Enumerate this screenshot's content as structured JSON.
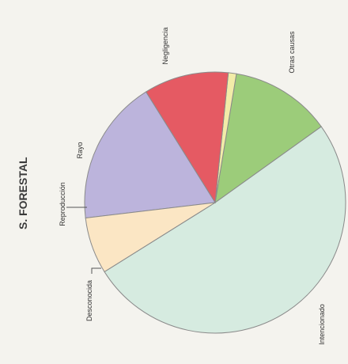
{
  "chart_data": {
    "type": "pie",
    "title": "S. FORESTAL",
    "legend": "none",
    "slices": [
      {
        "label": "Intencionado",
        "value": 51.0,
        "color": "#d6ebe0"
      },
      {
        "label": "Desconocida",
        "value": 12.5,
        "color": "#9ccc7a"
      },
      {
        "label": "Reproducción",
        "value": 1.0,
        "color": "#f2eca8"
      },
      {
        "label": "Rayo",
        "value": 10.5,
        "color": "#e55a63"
      },
      {
        "label": "Negligencia",
        "value": 18.0,
        "color": "#bcb4dc"
      },
      {
        "label": "Otras causas",
        "value": 7.0,
        "color": "#fbe6c4"
      }
    ]
  }
}
